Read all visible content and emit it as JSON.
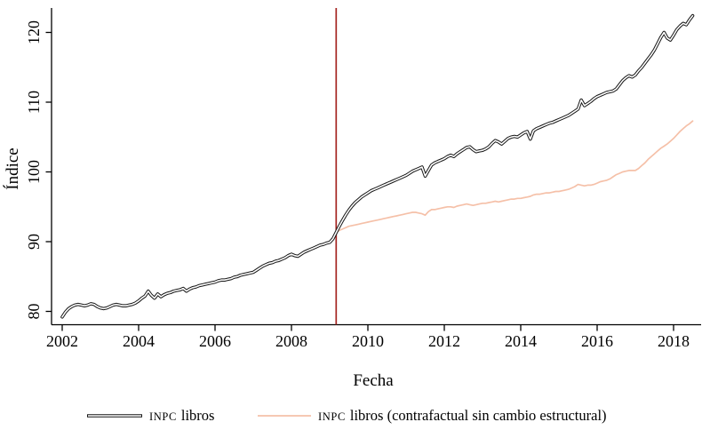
{
  "colors": {
    "axis": "#000000",
    "series_black": "#161616",
    "series_black_inner": "#ffffff",
    "series_pink": "#f5c0a8",
    "vline_red": "#a42421",
    "background": "#ffffff"
  },
  "legend": {
    "items": [
      {
        "acronym": "INPC",
        "rest": "libros",
        "swatch": "double-black-line"
      },
      {
        "acronym": "INPC",
        "rest": "libros (contrafactual sin cambio estructural)",
        "swatch": "pink-line"
      }
    ]
  },
  "chart_data": {
    "type": "line",
    "title": "",
    "xlabel": "Fecha",
    "ylabel": "Índice",
    "x_ticks": [
      2002,
      2004,
      2006,
      2008,
      2010,
      2012,
      2014,
      2016,
      2018
    ],
    "y_ticks": [
      80,
      90,
      100,
      110,
      120
    ],
    "xlim": [
      2002,
      2018.7
    ],
    "ylim": [
      78.5,
      123.5
    ],
    "grid": false,
    "legend_position": "bottom",
    "x_start_year": 2002,
    "x_step_years": 0.08333,
    "vline": {
      "x": 2009.17,
      "label": "cambio estructural"
    },
    "series": [
      {
        "name": "INPC libros (contrafactual sin cambio estructural)",
        "style": "pink-line",
        "values": [
          79.2,
          79.9,
          80.4,
          80.7,
          80.9,
          81.0,
          80.9,
          80.8,
          80.9,
          81.1,
          81.0,
          80.7,
          80.5,
          80.4,
          80.5,
          80.7,
          80.9,
          81.0,
          80.9,
          80.8,
          80.8,
          80.9,
          81.0,
          81.2,
          81.5,
          81.9,
          82.2,
          82.9,
          82.3,
          81.9,
          82.5,
          82.1,
          82.4,
          82.6,
          82.7,
          82.9,
          83.0,
          83.1,
          83.3,
          82.9,
          83.2,
          83.4,
          83.5,
          83.7,
          83.8,
          83.9,
          84.0,
          84.1,
          84.2,
          84.4,
          84.5,
          84.5,
          84.6,
          84.7,
          84.9,
          85.0,
          85.2,
          85.3,
          85.4,
          85.5,
          85.6,
          85.9,
          86.2,
          86.5,
          86.7,
          86.9,
          87.0,
          87.2,
          87.3,
          87.5,
          87.7,
          88.0,
          88.2,
          88.0,
          87.9,
          88.2,
          88.5,
          88.7,
          88.9,
          89.1,
          89.3,
          89.5,
          89.6,
          89.8,
          89.9,
          90.4,
          91.3,
          91.6,
          91.8,
          92.0,
          92.2,
          92.3,
          92.4,
          92.5,
          92.6,
          92.7,
          92.8,
          92.9,
          93.0,
          93.1,
          93.2,
          93.3,
          93.4,
          93.5,
          93.6,
          93.7,
          93.8,
          93.9,
          94.0,
          94.1,
          94.2,
          94.2,
          94.1,
          94.0,
          93.8,
          94.3,
          94.6,
          94.6,
          94.7,
          94.8,
          94.9,
          95.0,
          95.0,
          94.9,
          95.1,
          95.2,
          95.3,
          95.4,
          95.3,
          95.2,
          95.3,
          95.4,
          95.5,
          95.5,
          95.6,
          95.7,
          95.8,
          95.7,
          95.8,
          95.9,
          96.0,
          96.1,
          96.1,
          96.2,
          96.2,
          96.3,
          96.4,
          96.5,
          96.7,
          96.8,
          96.8,
          96.9,
          97.0,
          97.0,
          97.1,
          97.2,
          97.2,
          97.3,
          97.4,
          97.5,
          97.7,
          97.9,
          98.2,
          98.1,
          98.0,
          98.1,
          98.1,
          98.2,
          98.4,
          98.6,
          98.7,
          98.8,
          99.0,
          99.3,
          99.6,
          99.8,
          100.0,
          100.1,
          100.2,
          100.2,
          100.2,
          100.5,
          100.9,
          101.3,
          101.8,
          102.2,
          102.6,
          103.0,
          103.4,
          103.7,
          104.0,
          104.4,
          104.8,
          105.3,
          105.8,
          106.2,
          106.6,
          106.9,
          107.3
        ]
      },
      {
        "name": "INPC libros",
        "style": "double-black-line",
        "values": [
          79.2,
          79.9,
          80.4,
          80.7,
          80.9,
          81.0,
          80.9,
          80.8,
          80.9,
          81.1,
          81.0,
          80.7,
          80.5,
          80.4,
          80.5,
          80.7,
          80.9,
          81.0,
          80.9,
          80.8,
          80.8,
          80.9,
          81.0,
          81.2,
          81.5,
          81.9,
          82.2,
          82.9,
          82.3,
          81.9,
          82.5,
          82.1,
          82.4,
          82.6,
          82.7,
          82.9,
          83.0,
          83.1,
          83.3,
          82.9,
          83.2,
          83.4,
          83.5,
          83.7,
          83.8,
          83.9,
          84.0,
          84.1,
          84.2,
          84.4,
          84.5,
          84.5,
          84.6,
          84.7,
          84.9,
          85.0,
          85.2,
          85.3,
          85.4,
          85.5,
          85.6,
          85.9,
          86.2,
          86.5,
          86.7,
          86.9,
          87.0,
          87.2,
          87.3,
          87.5,
          87.7,
          88.0,
          88.2,
          88.0,
          87.9,
          88.2,
          88.5,
          88.7,
          88.9,
          89.1,
          89.3,
          89.5,
          89.6,
          89.8,
          89.9,
          90.4,
          91.3,
          92.2,
          93.0,
          93.8,
          94.5,
          95.1,
          95.6,
          96.0,
          96.4,
          96.7,
          97.0,
          97.3,
          97.5,
          97.7,
          97.9,
          98.1,
          98.3,
          98.5,
          98.7,
          98.9,
          99.1,
          99.3,
          99.5,
          99.8,
          100.1,
          100.3,
          100.5,
          100.7,
          99.4,
          100.2,
          101.0,
          101.3,
          101.5,
          101.7,
          101.9,
          102.2,
          102.4,
          102.2,
          102.6,
          102.9,
          103.2,
          103.5,
          103.6,
          103.2,
          102.9,
          103.0,
          103.1,
          103.3,
          103.6,
          104.1,
          104.5,
          104.3,
          104.0,
          104.4,
          104.8,
          105.0,
          105.1,
          105.0,
          105.3,
          105.6,
          105.8,
          104.7,
          105.9,
          106.2,
          106.4,
          106.6,
          106.8,
          107.0,
          107.1,
          107.3,
          107.5,
          107.7,
          107.9,
          108.1,
          108.4,
          108.7,
          109.0,
          110.3,
          109.5,
          109.8,
          110.1,
          110.5,
          110.8,
          111.0,
          111.2,
          111.4,
          111.5,
          111.6,
          111.9,
          112.5,
          113.1,
          113.5,
          113.8,
          113.6,
          113.9,
          114.5,
          115.0,
          115.6,
          116.2,
          116.8,
          117.5,
          118.4,
          119.3,
          120.0,
          119.2,
          118.9,
          119.6,
          120.4,
          120.9,
          121.3,
          121.1,
          121.8,
          122.4
        ]
      }
    ]
  }
}
